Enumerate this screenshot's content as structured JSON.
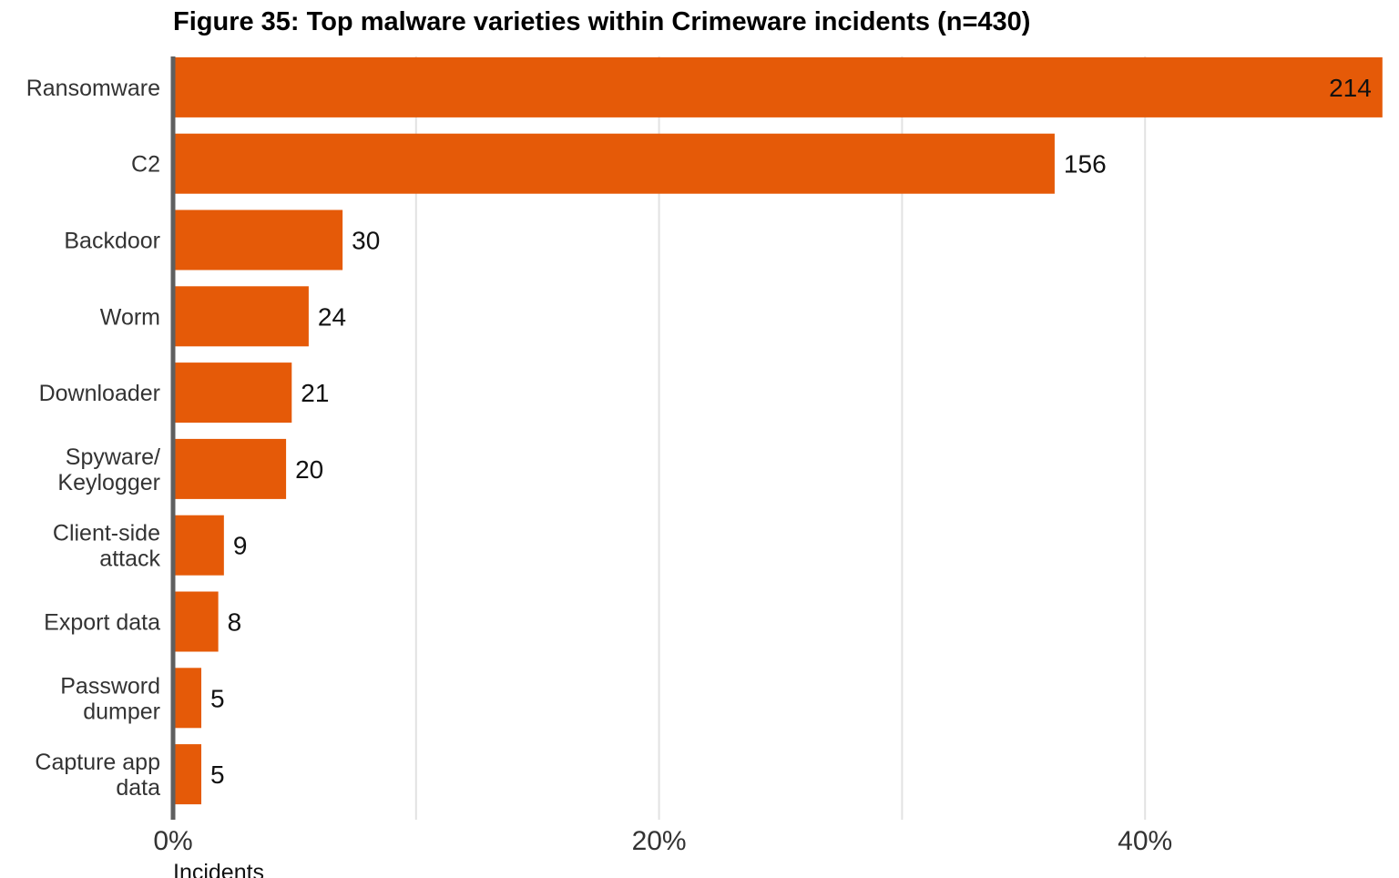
{
  "chart_data": {
    "type": "bar",
    "orientation": "horizontal",
    "title": "Figure 35: Top malware varieties within Crimeware incidents (n=430)",
    "xlabel": "Incidents",
    "ylabel": "",
    "n": 430,
    "categories": [
      "Ransomware",
      "C2",
      "Backdoor",
      "Worm",
      "Downloader",
      "Spyware/ Keylogger",
      "Client-side attack",
      "Export data",
      "Password dumper",
      "Capture app data"
    ],
    "category_lines": [
      [
        "Ransomware"
      ],
      [
        "C2"
      ],
      [
        "Backdoor"
      ],
      [
        "Worm"
      ],
      [
        "Downloader"
      ],
      [
        "Spyware/",
        "Keylogger"
      ],
      [
        "Client-side",
        "attack"
      ],
      [
        "Export data"
      ],
      [
        "Password",
        "dumper"
      ],
      [
        "Capture app",
        "data"
      ]
    ],
    "values": [
      214,
      156,
      30,
      24,
      21,
      20,
      9,
      8,
      5,
      5
    ],
    "value_labels": [
      "214",
      "156",
      "30",
      "24",
      "21",
      "20",
      "9",
      "8",
      "5",
      "5"
    ],
    "xlim": [
      0,
      0.5
    ],
    "xticks": [
      0,
      0.2,
      0.4
    ],
    "xtick_labels": [
      "0%",
      "20%",
      "40%"
    ],
    "minor_gridlines": [
      0.1,
      0.3
    ],
    "grid": true,
    "colors": {
      "bar": "#E55A08",
      "axis": "#5f5f5f",
      "grid": "#e2e2e2",
      "label": "#333333",
      "value": "#111111",
      "tick": "#333333"
    }
  }
}
